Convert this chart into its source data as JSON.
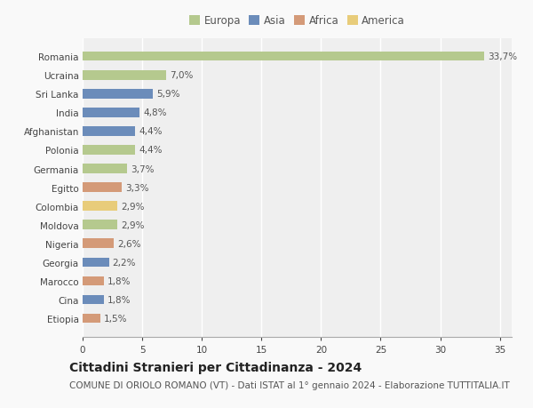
{
  "countries": [
    "Romania",
    "Ucraina",
    "Sri Lanka",
    "India",
    "Afghanistan",
    "Polonia",
    "Germania",
    "Egitto",
    "Colombia",
    "Moldova",
    "Nigeria",
    "Georgia",
    "Marocco",
    "Cina",
    "Etiopia"
  ],
  "values": [
    33.7,
    7.0,
    5.9,
    4.8,
    4.4,
    4.4,
    3.7,
    3.3,
    2.9,
    2.9,
    2.6,
    2.2,
    1.8,
    1.8,
    1.5
  ],
  "labels": [
    "33,7%",
    "7,0%",
    "5,9%",
    "4,8%",
    "4,4%",
    "4,4%",
    "3,7%",
    "3,3%",
    "2,9%",
    "2,9%",
    "2,6%",
    "2,2%",
    "1,8%",
    "1,8%",
    "1,5%"
  ],
  "continents": [
    "Europa",
    "Europa",
    "Asia",
    "Asia",
    "Asia",
    "Europa",
    "Europa",
    "Africa",
    "America",
    "Europa",
    "Africa",
    "Asia",
    "Africa",
    "Asia",
    "Africa"
  ],
  "continent_colors": {
    "Europa": "#b5c98e",
    "Asia": "#6b8cba",
    "Africa": "#d49a78",
    "America": "#e8cc7a"
  },
  "legend_order": [
    "Europa",
    "Asia",
    "Africa",
    "America"
  ],
  "title": "Cittadini Stranieri per Cittadinanza - 2024",
  "subtitle": "COMUNE DI ORIOLO ROMANO (VT) - Dati ISTAT al 1° gennaio 2024 - Elaborazione TUTTITALIA.IT",
  "xlim": [
    0,
    36
  ],
  "xticks": [
    0,
    5,
    10,
    15,
    20,
    25,
    30,
    35
  ],
  "background_color": "#f9f9f9",
  "plot_background": "#f0f0f0",
  "grid_color": "#ffffff",
  "bar_height": 0.5,
  "title_fontsize": 10,
  "subtitle_fontsize": 7.5,
  "label_fontsize": 7.5,
  "tick_fontsize": 7.5,
  "legend_fontsize": 8.5
}
